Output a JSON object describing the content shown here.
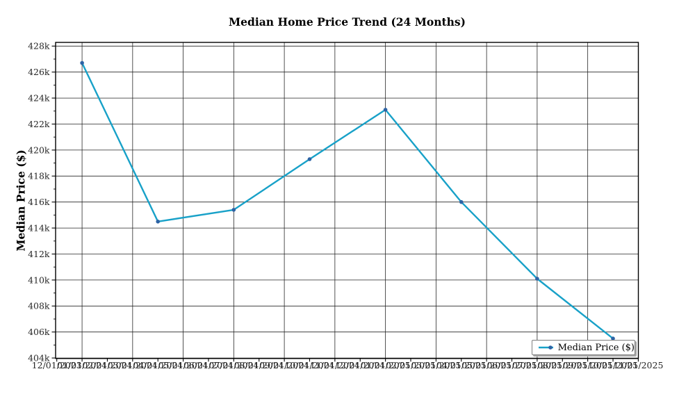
{
  "title": "Median Home Price Trend (24 Months)",
  "legend": {
    "entries": [
      "Median Price ($)"
    ],
    "position": "lower right"
  },
  "colors": {
    "line": "#18a1c8",
    "marker": "#2d63a5",
    "grid": "#262626",
    "spine": "#000000",
    "tick_label": "#262626"
  },
  "chart_data": {
    "type": "line",
    "title": "Median Home Price Trend (24 Months)",
    "xlabel": "",
    "ylabel": "Median Price ($)",
    "ylim": [
      404000,
      428000
    ],
    "grid": true,
    "legend_position": "lower right",
    "y_tick_labels": [
      "428k",
      "426k",
      "424k",
      "422k",
      "420k",
      "418k",
      "416k",
      "414k",
      "412k",
      "410k",
      "408k",
      "406k",
      "404k"
    ],
    "y_tick_values": [
      428000,
      426000,
      424000,
      422000,
      420000,
      418000,
      416000,
      414000,
      412000,
      410000,
      408000,
      406000,
      404000
    ],
    "x_tick_labels": [
      "12/01/2023",
      "01/01/2024",
      "02/01/2024",
      "03/01/2024",
      "04/01/2024",
      "05/01/2024",
      "06/01/2024",
      "07/01/2024",
      "08/01/2024",
      "09/01/2024",
      "10/01/2024",
      "11/01/2024",
      "12/01/2024",
      "01/01/2025",
      "02/01/2025",
      "03/01/2025",
      "04/01/2025",
      "05/01/2025",
      "06/01/2025",
      "07/01/2025",
      "08/01/2025",
      "09/01/2025",
      "10/01/2025",
      "11/01/2025"
    ],
    "x_gridline_labels": [
      "01/01/2024",
      "03/01/2024",
      "05/01/2024",
      "07/01/2024",
      "09/01/2024",
      "11/01/2024",
      "01/01/2025",
      "03/01/2025",
      "05/01/2025",
      "07/01/2025",
      "09/01/2025",
      "11/01/2025"
    ],
    "series": [
      {
        "name": "Median Price ($)",
        "color": "#18a1c8",
        "marker_color": "#2d63a5",
        "points": [
          {
            "date": "01/01/2024",
            "value": 426700
          },
          {
            "date": "04/01/2024",
            "value": 414500
          },
          {
            "date": "07/01/2024",
            "value": 415400
          },
          {
            "date": "10/01/2024",
            "value": 419300
          },
          {
            "date": "01/01/2025",
            "value": 423100
          },
          {
            "date": "04/01/2025",
            "value": 416000
          },
          {
            "date": "07/01/2025",
            "value": 410100
          },
          {
            "date": "10/01/2025",
            "value": 405500
          }
        ]
      }
    ]
  }
}
